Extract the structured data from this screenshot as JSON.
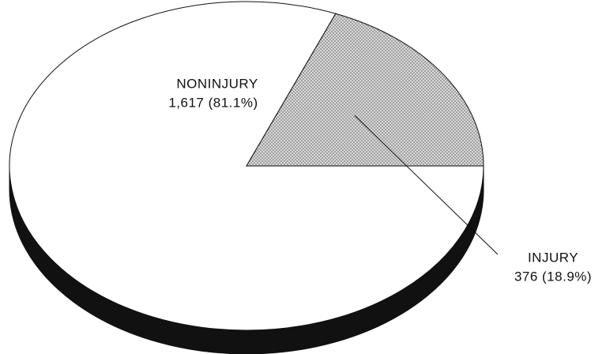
{
  "chart_data": {
    "type": "pie",
    "categories": [
      "NONINJURY",
      "INJURY"
    ],
    "values": [
      1617,
      376
    ],
    "value_labels": [
      "1,617 (81.1%)",
      "376 (18.9%)"
    ],
    "colors": [
      "#ffffff",
      "pattern"
    ],
    "start_angle": 0,
    "direction": "clockwise",
    "three_d": true
  }
}
